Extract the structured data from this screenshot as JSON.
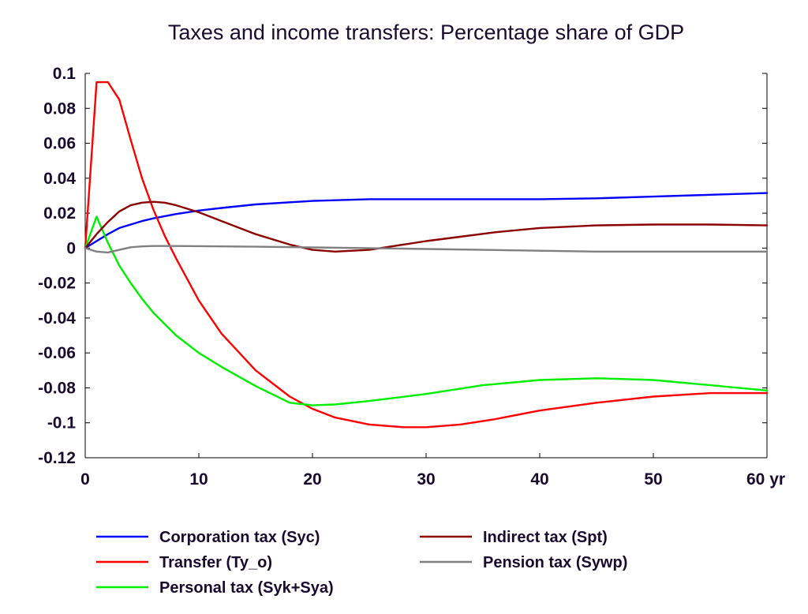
{
  "chart_data": {
    "type": "line",
    "title": "Taxes and income transfers: Percentage share of GDP",
    "xlabel": "",
    "ylabel": "",
    "xlim": [
      0,
      60
    ],
    "ylim": [
      -0.12,
      0.1
    ],
    "x_ticks": [
      0,
      10,
      20,
      30,
      40,
      50,
      60
    ],
    "x_tick_labels": [
      "0",
      "10",
      "20",
      "30",
      "40",
      "50",
      "60 yr"
    ],
    "y_ticks": [
      0.1,
      0.08,
      0.06,
      0.04,
      0.02,
      0,
      -0.02,
      -0.04,
      -0.06,
      -0.08,
      -0.1,
      -0.12
    ],
    "y_tick_labels": [
      "0.1",
      "0.08",
      "0.06",
      "0.04",
      "0.02",
      "0",
      "-0.02",
      "-0.04",
      "-0.06",
      "-0.08",
      "-0.1",
      "-0.12"
    ],
    "grid": false,
    "legend_position": "bottom",
    "series": [
      {
        "name": "Corporation tax (Syc)",
        "color": "#0000ff",
        "x": [
          0,
          1,
          2,
          3,
          4,
          5,
          6,
          8,
          10,
          12,
          15,
          20,
          25,
          30,
          35,
          40,
          45,
          50,
          55,
          60
        ],
        "values": [
          0,
          0.004,
          0.008,
          0.0115,
          0.0135,
          0.0155,
          0.017,
          0.0195,
          0.0215,
          0.023,
          0.025,
          0.027,
          0.028,
          0.028,
          0.028,
          0.028,
          0.0285,
          0.0295,
          0.0305,
          0.0315
        ]
      },
      {
        "name": "Transfer (Ty_o)",
        "color": "#ff0000",
        "x": [
          0,
          1,
          2,
          3,
          4,
          5,
          6,
          7,
          8,
          10,
          12,
          15,
          18,
          20,
          22,
          25,
          28,
          30,
          33,
          36,
          40,
          45,
          50,
          55,
          60
        ],
        "values": [
          0,
          0.095,
          0.095,
          0.085,
          0.062,
          0.04,
          0.022,
          0.007,
          -0.006,
          -0.03,
          -0.049,
          -0.07,
          -0.085,
          -0.092,
          -0.097,
          -0.101,
          -0.1025,
          -0.1025,
          -0.101,
          -0.098,
          -0.093,
          -0.0885,
          -0.085,
          -0.083,
          -0.083
        ]
      },
      {
        "name": "Personal tax (Syk+Sya)",
        "color": "#00ee00",
        "x": [
          0,
          1,
          2,
          3,
          4,
          5,
          6,
          8,
          10,
          12,
          15,
          18,
          20,
          22,
          25,
          30,
          35,
          40,
          45,
          50,
          55,
          60
        ],
        "values": [
          0,
          0.018,
          0.003,
          -0.01,
          -0.02,
          -0.029,
          -0.037,
          -0.05,
          -0.06,
          -0.068,
          -0.079,
          -0.0885,
          -0.09,
          -0.0895,
          -0.0875,
          -0.0835,
          -0.0785,
          -0.0755,
          -0.0745,
          -0.0755,
          -0.0785,
          -0.0815
        ]
      },
      {
        "name": "Indirect tax (Spt)",
        "color": "#8b0000",
        "x": [
          0,
          1,
          2,
          3,
          4,
          5,
          6,
          7,
          8,
          10,
          12,
          15,
          18,
          20,
          22,
          25,
          28,
          30,
          33,
          36,
          40,
          45,
          50,
          55,
          60
        ],
        "values": [
          0,
          0.008,
          0.015,
          0.021,
          0.0245,
          0.026,
          0.0265,
          0.026,
          0.0245,
          0.0205,
          0.0155,
          0.008,
          0.002,
          -0.001,
          -0.002,
          -0.001,
          0.002,
          0.004,
          0.0065,
          0.009,
          0.0115,
          0.013,
          0.0135,
          0.0135,
          0.013
        ]
      },
      {
        "name": "Pension tax (Sywp)",
        "color": "#808080",
        "x": [
          0,
          1,
          2,
          3,
          4,
          5,
          6,
          8,
          10,
          12,
          15,
          20,
          25,
          30,
          35,
          40,
          45,
          50,
          55,
          60
        ],
        "values": [
          0,
          -0.002,
          -0.0025,
          -0.001,
          0.0005,
          0.001,
          0.0012,
          0.0012,
          0.0011,
          0.001,
          0.0008,
          0.0004,
          0,
          -0.0005,
          -0.001,
          -0.0015,
          -0.002,
          -0.002,
          -0.002,
          -0.002
        ]
      }
    ]
  }
}
